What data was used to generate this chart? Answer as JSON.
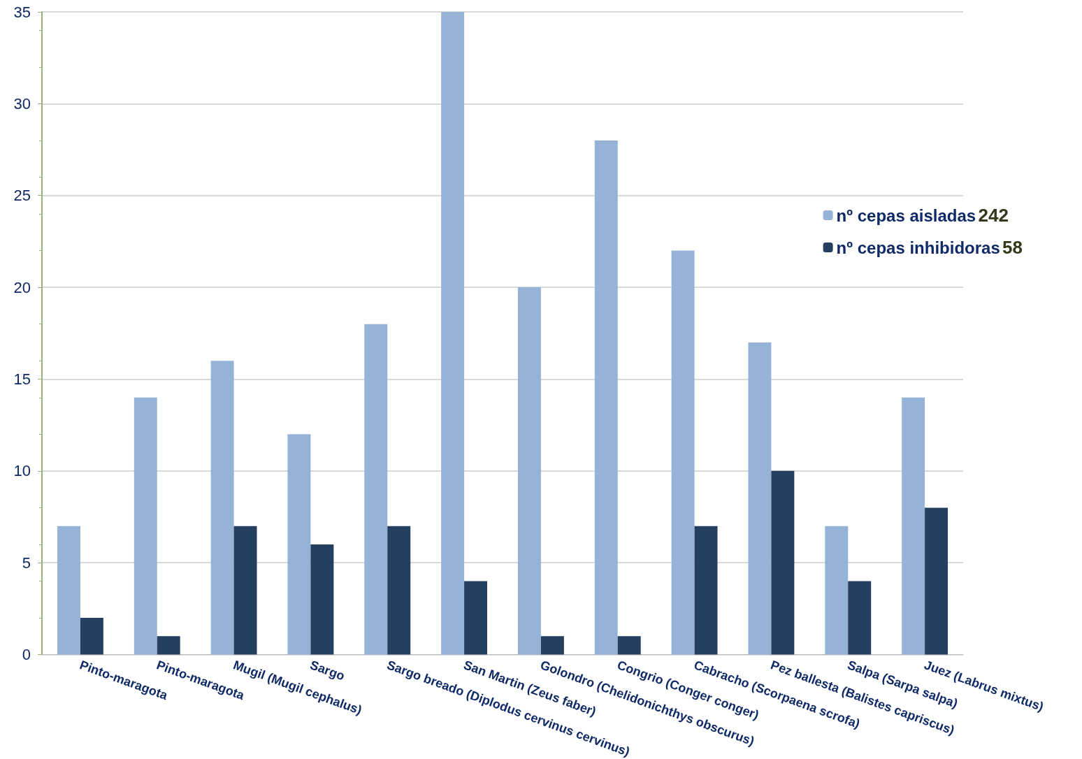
{
  "chart_data": {
    "type": "bar",
    "categories": [
      "Pinto-maragota",
      "Pinto-maragota",
      "Mugil (Mugil cephalus)",
      "Sargo",
      "Sargo breado (Diplodus cervinus cervinus)",
      "San Martin (Zeus faber)",
      "Golondro (Chelidonichthys obscurus)",
      "Congrio (Conger conger)",
      "Cabracho (Scorpaena scrofa)",
      "Pez ballesta (Balistes capriscus)",
      "Salpa (Sarpa salpa)",
      "Juez (Labrus mixtus)"
    ],
    "series": [
      {
        "name": "nº cepas aisladas",
        "color": "#95b3d7",
        "values": [
          7,
          14,
          16,
          12,
          18,
          35,
          20,
          28,
          22,
          17,
          7,
          14
        ]
      },
      {
        "name": "nº cepas inhibidoras",
        "color": "#243f60",
        "values": [
          2,
          1,
          7,
          6,
          7,
          4,
          1,
          1,
          7,
          10,
          4,
          8
        ]
      }
    ],
    "annotations": [
      "242",
      "58"
    ],
    "ylim": [
      0,
      35
    ],
    "yticks": [
      0,
      5,
      10,
      15,
      20,
      25,
      30,
      35
    ],
    "grid": "y",
    "legend": "right"
  }
}
